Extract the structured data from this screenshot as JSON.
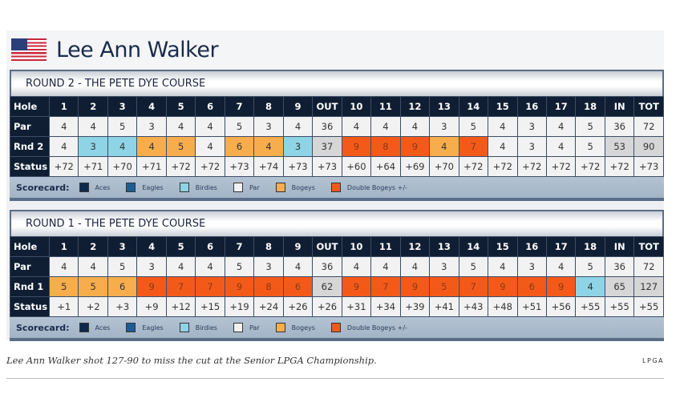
{
  "player": "Lee Ann Walker",
  "legend": {
    "label": "Scorecard:",
    "items": [
      {
        "label": "Aces",
        "color": "#0d2a4e"
      },
      {
        "label": "Eagles",
        "color": "#1e5c95"
      },
      {
        "label": "Birdies",
        "color": "#8ed4e6"
      },
      {
        "label": "Par",
        "color": "#f2f2f2"
      },
      {
        "label": "Bogeys",
        "color": "#f7ad4c"
      },
      {
        "label": "Double Bogeys +/-",
        "color": "#f35a1a"
      }
    ]
  },
  "holes": [
    "Hole",
    "1",
    "2",
    "3",
    "4",
    "5",
    "6",
    "7",
    "8",
    "9",
    "OUT",
    "10",
    "11",
    "12",
    "13",
    "14",
    "15",
    "16",
    "17",
    "18",
    "IN",
    "TOT"
  ],
  "rounds": [
    {
      "title": "ROUND 2 - THE PETE DYE COURSE",
      "par": [
        "Par",
        "4",
        "4",
        "5",
        "3",
        "4",
        "4",
        "5",
        "3",
        "4",
        "36",
        "4",
        "4",
        "4",
        "3",
        "5",
        "4",
        "3",
        "4",
        "5",
        "36",
        "72"
      ],
      "score": [
        "Rnd 2",
        "4",
        "3",
        "4",
        "4",
        "5",
        "4",
        "6",
        "4",
        "3",
        "37",
        "9",
        "8",
        "9",
        "4",
        "7",
        "4",
        "3",
        "4",
        "5",
        "53",
        "90"
      ],
      "types": [
        "lab",
        "p",
        "b",
        "b",
        "g",
        "g",
        "p",
        "g",
        "g",
        "b",
        "t",
        "d",
        "d",
        "d",
        "g",
        "d",
        "p",
        "p",
        "p",
        "p",
        "t",
        "t"
      ],
      "status": [
        "Status",
        "+72",
        "+71",
        "+70",
        "+71",
        "+72",
        "+72",
        "+73",
        "+74",
        "+73",
        "+73",
        "+60",
        "+64",
        "+69",
        "+70",
        "+72",
        "+72",
        "+72",
        "+72",
        "+72",
        "+72",
        "+73"
      ]
    },
    {
      "title": "ROUND 1 - THE PETE DYE COURSE",
      "par": [
        "Par",
        "4",
        "4",
        "5",
        "3",
        "4",
        "4",
        "5",
        "3",
        "4",
        "36",
        "4",
        "4",
        "4",
        "3",
        "5",
        "4",
        "3",
        "4",
        "5",
        "36",
        "72"
      ],
      "score": [
        "Rnd 1",
        "5",
        "5",
        "6",
        "9",
        "7",
        "7",
        "9",
        "8",
        "6",
        "62",
        "9",
        "7",
        "9",
        "5",
        "7",
        "9",
        "6",
        "9",
        "4",
        "65",
        "127"
      ],
      "types": [
        "lab",
        "g",
        "g",
        "g",
        "d",
        "d",
        "d",
        "d",
        "d",
        "d",
        "t",
        "d",
        "d",
        "d",
        "d",
        "d",
        "d",
        "d",
        "d",
        "b",
        "t",
        "t"
      ],
      "status": [
        "Status",
        "+1",
        "+2",
        "+3",
        "+9",
        "+12",
        "+15",
        "+19",
        "+24",
        "+26",
        "+26",
        "+31",
        "+34",
        "+39",
        "+41",
        "+43",
        "+48",
        "+51",
        "+56",
        "+55",
        "+55",
        "+55"
      ]
    }
  ],
  "caption": "Lee Ann Walker shot 127-90 to miss the cut at the Senior LPGA Championship.",
  "credit": "LPGA"
}
